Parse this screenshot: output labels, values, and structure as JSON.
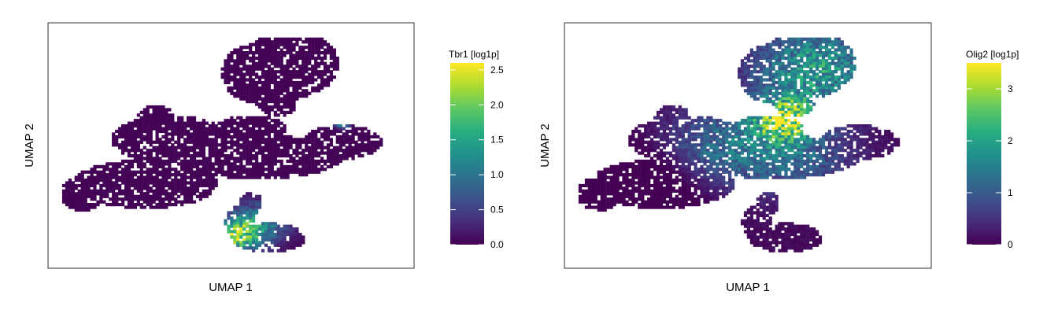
{
  "chart_data": [
    {
      "type": "scatter",
      "subtype": "hexbin-umap",
      "xlabel": "UMAP 1",
      "ylabel": "UMAP 2",
      "legend": {
        "title": "Tbr1 [log1p]",
        "position": "right",
        "colormap": "viridis",
        "range": [
          0,
          2.6
        ],
        "ticks": [
          "0.0",
          "0.5",
          "1.0",
          "1.5",
          "2.0",
          "2.5"
        ],
        "tick_values": [
          0,
          0.5,
          1.0,
          1.5,
          2.0,
          2.5
        ]
      },
      "grid": false,
      "expression_summary": "low (~0) across most cells; elevated 1.5-2.5 in lower-middle cluster",
      "high_regions": [
        {
          "region": "lower-middle cluster, left lobe",
          "value": 2.0
        },
        {
          "region": "right arm small spot",
          "value": 1.5
        }
      ]
    },
    {
      "type": "scatter",
      "subtype": "hexbin-umap",
      "xlabel": "UMAP 1",
      "ylabel": "UMAP 2",
      "legend": {
        "title": "Olig2 [log1p]",
        "position": "right",
        "colormap": "viridis",
        "range": [
          0,
          3.5
        ],
        "ticks": [
          "0",
          "1",
          "2",
          "3"
        ],
        "tick_values": [
          0,
          1,
          2,
          3
        ]
      },
      "grid": false,
      "expression_summary": "moderate 1-2 in upper-right cluster and central region; peak ~3.5 along central bridge",
      "high_regions": [
        {
          "region": "upper-right cluster",
          "value": 2.0
        },
        {
          "region": "central bridge",
          "value": 3.2
        },
        {
          "region": "central body",
          "value": 1.2
        }
      ]
    }
  ]
}
